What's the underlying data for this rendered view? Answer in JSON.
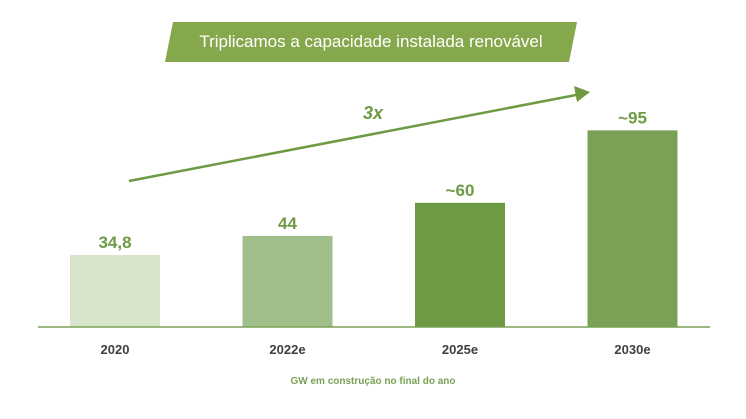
{
  "colors": {
    "banner": "#84a84b",
    "accent": "#6f9a44",
    "axis": "#7aa155",
    "tick": "#404040"
  },
  "chart_data": {
    "type": "bar",
    "title": "Triplicamos a capacidade instalada renovável",
    "categories": [
      "2020",
      "2022e",
      "2025e",
      "2030e"
    ],
    "values": [
      34.8,
      44,
      60,
      95
    ],
    "value_labels": [
      "34,8",
      "44",
      "~60",
      "~95"
    ],
    "bar_colors": [
      "#d9e4cc",
      "#a1bf8a",
      "#6f9a44",
      "#7aa155"
    ],
    "ylim": [
      0,
      100
    ],
    "annotation": "3x",
    "footer": "GW em construção no final do ano",
    "xlabel": "",
    "ylabel": "",
    "grid": false
  }
}
